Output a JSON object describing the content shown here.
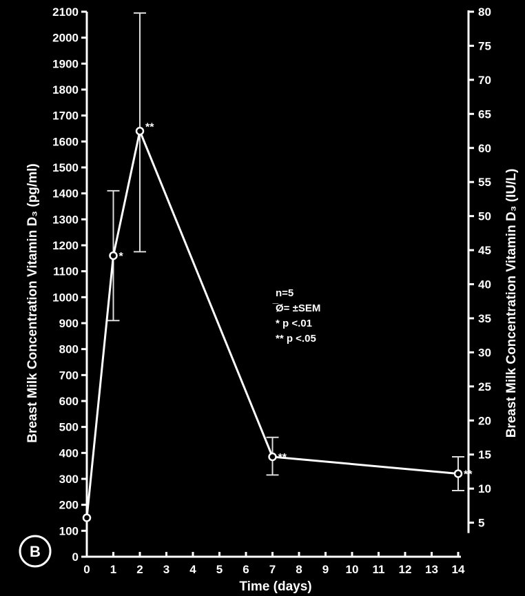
{
  "panel_label": "B",
  "chart_data": {
    "type": "line",
    "xlabel": "Time (days)",
    "ylabel_left": "Breast Milk Concentration Vitamin D₃ (pg/ml)",
    "ylabel_right": "Breast Milk Concentration Vitamin D₃ (IU/L)",
    "x_ticks": [
      0,
      1,
      2,
      3,
      4,
      5,
      6,
      7,
      8,
      9,
      10,
      11,
      12,
      13,
      14
    ],
    "xlim": [
      0,
      14
    ],
    "y_left_ticks": [
      0,
      100,
      200,
      300,
      400,
      500,
      600,
      700,
      800,
      900,
      1000,
      1100,
      1200,
      1300,
      1400,
      1500,
      1600,
      1700,
      1800,
      1900,
      2000,
      2100
    ],
    "ylim_left": [
      0,
      2100
    ],
    "y_right_ticks": [
      5,
      10,
      15,
      20,
      25,
      30,
      35,
      40,
      45,
      50,
      55,
      60,
      65,
      70,
      75,
      80
    ],
    "ylim_right": [
      0,
      80
    ],
    "grid": false,
    "series": [
      {
        "x": [
          0,
          1,
          2,
          7,
          14
        ],
        "y": [
          150,
          1160,
          1640,
          385,
          320
        ],
        "err_low": [
          150,
          910,
          1175,
          315,
          255
        ],
        "err_high": [
          150,
          1410,
          2095,
          460,
          385
        ],
        "significance": [
          "",
          "*",
          "**",
          "**",
          "**"
        ]
      }
    ],
    "annotation": [
      "n=5",
      "̅Ø= ±SEM",
      "* p <.01",
      "** p <.05"
    ]
  }
}
